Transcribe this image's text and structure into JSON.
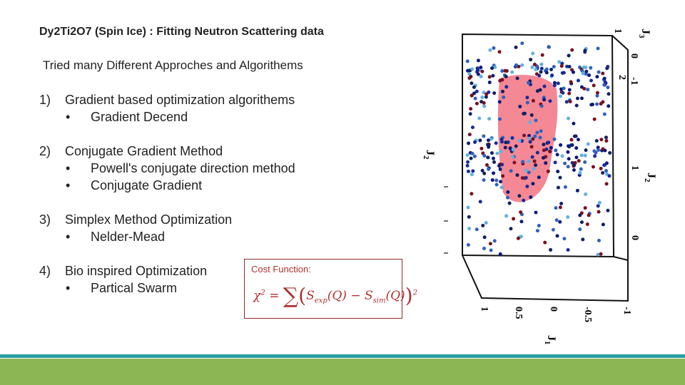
{
  "header": {
    "title": "Dy2Ti2O7 (Spin Ice) : Fitting Neutron Scattering data"
  },
  "subtitle": "Tried many Different Approches and Algorithems",
  "items": [
    {
      "number": "1)",
      "text": "Gradient based optimization algorithems",
      "bullets": [
        "Gradient Decend"
      ]
    },
    {
      "number": "2)",
      "text": "Conjugate Gradient Method",
      "bullets": [
        "Powell's conjugate direction method",
        "Conjugate Gradient"
      ]
    },
    {
      "number": "3)",
      "text": "Simplex Method Optimization",
      "bullets": [
        "Nelder-Mead"
      ]
    },
    {
      "number": "4)",
      "text": "Bio inspired Optimization",
      "bullets": [
        "Partical Swarm"
      ]
    }
  ],
  "bullet": "•",
  "cost_function": {
    "label": "Cost Function:",
    "chi": "χ",
    "power": "2",
    "equals": "=",
    "sum": "∑",
    "open": "(",
    "s1": "S",
    "sub1": "exp",
    "arg1": "(Q)",
    "minus": "−",
    "s2": "S",
    "sub2": "sim",
    "arg2": "(Q)",
    "close": ")",
    "outer_power": "2"
  },
  "plot": {
    "j3": {
      "symbol": "J",
      "index": "3"
    },
    "j2_left": {
      "symbol": "J",
      "index": "2"
    },
    "j2_right": {
      "symbol": "J",
      "index": "2"
    },
    "j1": {
      "symbol": "J",
      "index": "1"
    },
    "j3_ticks": [
      "1",
      "0",
      "-1"
    ],
    "j2_ticks": [
      "2",
      "1",
      "0"
    ],
    "j1_ticks": [
      "1",
      "0.5",
      "0",
      "-0.5",
      "-1"
    ]
  }
}
